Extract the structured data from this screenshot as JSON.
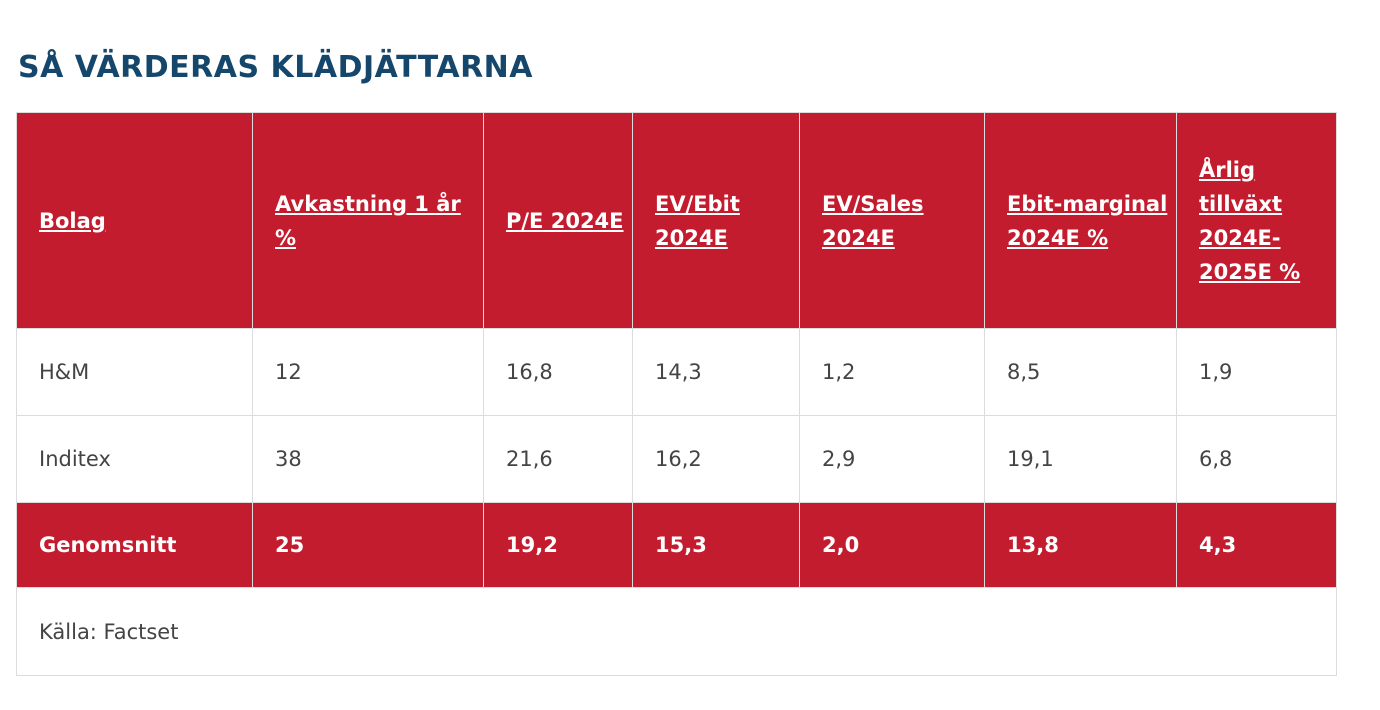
{
  "title": "SÅ VÄRDERAS KLÄDJÄTTARNA",
  "colors": {
    "title": "#14476b",
    "header_bg": "#c31c2e",
    "header_text": "#ffffff",
    "body_text": "#444444",
    "border": "#dcdcdc"
  },
  "table": {
    "headers": [
      "Bolag",
      "Avkastning 1 år %",
      "P/E 2024E",
      "EV/Ebit 2024E",
      "EV/Sales 2024E",
      "Ebit-marginal 2024E %",
      "Årlig tillväxt 2024E-2025E %"
    ],
    "rows": [
      [
        "H&M",
        "12",
        "16,8",
        "14,3",
        "1,2",
        "8,5",
        "1,9"
      ],
      [
        "Inditex",
        "38",
        "21,6",
        "16,2",
        "2,9",
        "19,1",
        "6,8"
      ]
    ],
    "average": [
      "Genomsnitt",
      "25",
      "19,2",
      "15,3",
      "2,0",
      "13,8",
      "4,3"
    ],
    "source": "Källa: Factset"
  }
}
